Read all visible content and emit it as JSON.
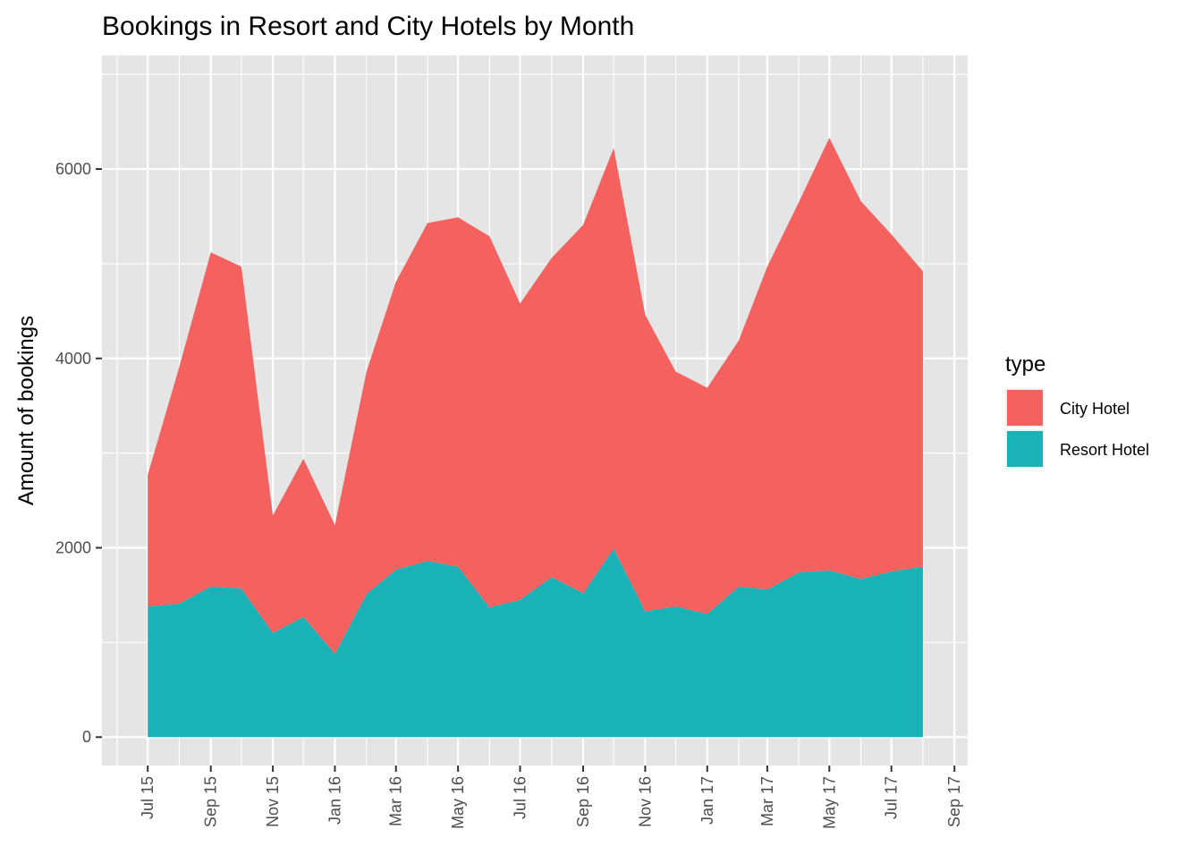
{
  "chart_data": {
    "type": "area",
    "stacked": true,
    "title": "Bookings in Resort and City Hotels by Month",
    "xlabel": "",
    "ylabel": "Amount of bookings",
    "x": [
      "2015-07",
      "2015-08",
      "2015-09",
      "2015-10",
      "2015-11",
      "2015-12",
      "2016-01",
      "2016-02",
      "2016-03",
      "2016-04",
      "2016-05",
      "2016-06",
      "2016-07",
      "2016-08",
      "2016-09",
      "2016-10",
      "2016-11",
      "2016-12",
      "2017-01",
      "2017-02",
      "2017-03",
      "2017-04",
      "2017-05",
      "2017-06",
      "2017-07",
      "2017-08"
    ],
    "series": [
      {
        "name": "Resort Hotel",
        "color": "#19B3B7",
        "values": [
          1380,
          1410,
          1590,
          1570,
          1100,
          1270,
          880,
          1510,
          1770,
          1860,
          1800,
          1370,
          1450,
          1690,
          1520,
          1990,
          1330,
          1380,
          1300,
          1590,
          1560,
          1740,
          1760,
          1670,
          1750,
          1800
        ]
      },
      {
        "name": "City Hotel",
        "color": "#F4615E",
        "values": [
          1390,
          2500,
          3530,
          3400,
          1240,
          1670,
          1360,
          2350,
          3040,
          3570,
          3690,
          3920,
          3130,
          3370,
          3890,
          4230,
          3130,
          2480,
          2390,
          2600,
          3410,
          3910,
          4570,
          3990,
          3560,
          3120
        ]
      }
    ],
    "ylim": [
      -300,
      7200
    ],
    "y_ticks": [
      0,
      2000,
      4000,
      6000
    ],
    "y_tick_labels": [
      "0",
      "2000",
      "4000",
      "6000"
    ],
    "x_ticks": [
      "2015-07",
      "2015-09",
      "2015-11",
      "2016-01",
      "2016-03",
      "2016-05",
      "2016-07",
      "2016-09",
      "2016-11",
      "2017-01",
      "2017-03",
      "2017-05",
      "2017-07",
      "2017-09"
    ],
    "x_tick_labels": [
      "Jul 15",
      "Sep 15",
      "Nov 15",
      "Jan 16",
      "Mar 16",
      "May 16",
      "Jul 16",
      "Sep 16",
      "Nov 16",
      "Jan 17",
      "Mar 17",
      "May 17",
      "Jul 17",
      "Sep 17"
    ],
    "xlim": [
      "2015-05-17",
      "2017-09-14"
    ],
    "grid": true,
    "panel_background": "#E5E5E5",
    "legend": {
      "title": "type",
      "position": "right",
      "entries": [
        {
          "label": "City Hotel",
          "color": "#F4615E"
        },
        {
          "label": "Resort Hotel",
          "color": "#19B3B7"
        }
      ]
    }
  }
}
